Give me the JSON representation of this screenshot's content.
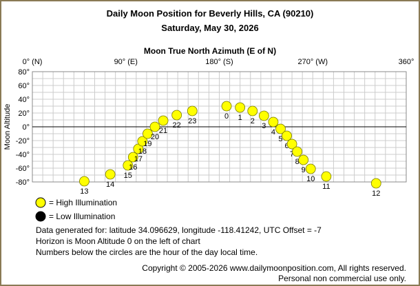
{
  "chart_data": {
    "type": "scatter",
    "title": "Daily Moon Position for Beverly Hills, CA (90210)",
    "subtitle": "Saturday, May 30, 2026",
    "xlabel": "Moon True North Azimuth (E of N)",
    "ylabel": "Moon Altitude",
    "xlim": [
      0,
      360
    ],
    "ylim": [
      -80,
      80
    ],
    "x_ticks": [
      {
        "value": 0,
        "label": "0° (N)"
      },
      {
        "value": 90,
        "label": "90° (E)"
      },
      {
        "value": 180,
        "label": "180° (S)"
      },
      {
        "value": 270,
        "label": "270° (W)"
      },
      {
        "value": 360,
        "label": "360°"
      }
    ],
    "y_ticks": [
      {
        "value": 80,
        "label": "80°"
      },
      {
        "value": 60,
        "label": "60°"
      },
      {
        "value": 40,
        "label": "40°"
      },
      {
        "value": 20,
        "label": "20°"
      },
      {
        "value": 0,
        "label": "0°"
      },
      {
        "value": -20,
        "label": "-20°"
      },
      {
        "value": -40,
        "label": "-40°"
      },
      {
        "value": -60,
        "label": "-60°"
      },
      {
        "value": -80,
        "label": "-80°"
      }
    ],
    "grid": true,
    "points": [
      {
        "hour": "0",
        "az": 187,
        "alt": 30
      },
      {
        "hour": "1",
        "az": 200,
        "alt": 28
      },
      {
        "hour": "2",
        "az": 212,
        "alt": 23
      },
      {
        "hour": "3",
        "az": 223,
        "alt": 16
      },
      {
        "hour": "4",
        "az": 232,
        "alt": 7
      },
      {
        "hour": "5",
        "az": 239,
        "alt": -3
      },
      {
        "hour": "6",
        "az": 245,
        "alt": -13
      },
      {
        "hour": "7",
        "az": 250,
        "alt": -25
      },
      {
        "hour": "8",
        "az": 255,
        "alt": -36
      },
      {
        "hour": "9",
        "az": 261,
        "alt": -48
      },
      {
        "hour": "10",
        "az": 268,
        "alt": -61
      },
      {
        "hour": "11",
        "az": 283,
        "alt": -72
      },
      {
        "hour": "12",
        "az": 331,
        "alt": -82
      },
      {
        "hour": "13",
        "az": 50,
        "alt": -79
      },
      {
        "hour": "14",
        "az": 75,
        "alt": -69
      },
      {
        "hour": "15",
        "az": 92,
        "alt": -56
      },
      {
        "hour": "16",
        "az": 97,
        "alt": -44
      },
      {
        "hour": "17",
        "az": 102,
        "alt": -32
      },
      {
        "hour": "18",
        "az": 106,
        "alt": -21
      },
      {
        "hour": "19",
        "az": 111,
        "alt": -10
      },
      {
        "hour": "20",
        "az": 118,
        "alt": 0
      },
      {
        "hour": "21",
        "az": 126,
        "alt": 9
      },
      {
        "hour": "22",
        "az": 139,
        "alt": 17
      },
      {
        "hour": "23",
        "az": 154,
        "alt": 23
      }
    ],
    "colors": {
      "high": "#ffff00",
      "low": "#000000",
      "grid": "#cccccc",
      "horizon": "#000000"
    }
  },
  "legend": {
    "high": "= High Illumination",
    "low": "= Low Illumination"
  },
  "info": {
    "line1": "Data generated for: latitude 34.096629, longitude -118.41242, UTC Offset = -7",
    "line2": "Horizon is Moon Altitude 0 on the left of chart",
    "line3": "Numbers below the circles are the hour of the day local time."
  },
  "copyright": {
    "line1": "Copyright © 2005-2026 www.dailymoonposition.com, All rights reserved.",
    "line2": "Personal non commercial use only."
  }
}
